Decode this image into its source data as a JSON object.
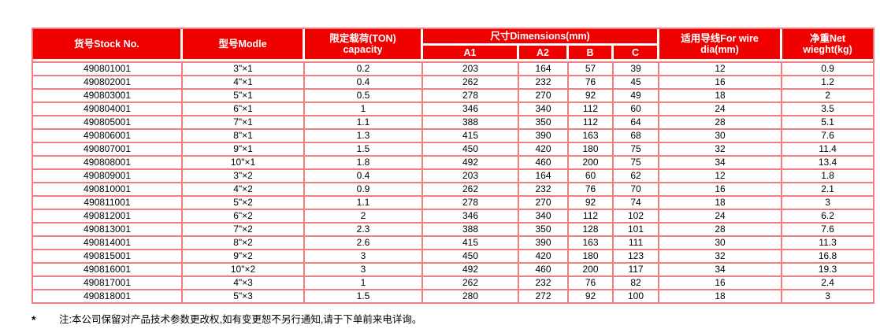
{
  "colors": {
    "header_bg": "#f10000",
    "header_text": "#ffffff",
    "grid_border": "#f37c7c",
    "body_text": "#000000"
  },
  "table": {
    "headers": {
      "stock_no": "货号Stock No.",
      "model": "型号Modle",
      "capacity": "限定载荷(TON)\ncapacity",
      "dimensions_group": "尺寸Dimensions(mm)",
      "dim_cols": [
        "A1",
        "A2",
        "B",
        "C"
      ],
      "wire_dia": "适用导线For wire dia(mm)",
      "net_weight": "净重Net wieght(kg)"
    },
    "rows": [
      [
        "490801001",
        "3\"×1",
        "0.2",
        "203",
        "164",
        "57",
        "39",
        "12",
        "0.9"
      ],
      [
        "490802001",
        "4\"×1",
        "0.4",
        "262",
        "232",
        "76",
        "45",
        "16",
        "1.2"
      ],
      [
        "490803001",
        "5\"×1",
        "0.5",
        "278",
        "270",
        "92",
        "49",
        "18",
        "2"
      ],
      [
        "490804001",
        "6\"×1",
        "1",
        "346",
        "340",
        "112",
        "60",
        "24",
        "3.5"
      ],
      [
        "490805001",
        "7\"×1",
        "1.1",
        "388",
        "350",
        "112",
        "64",
        "28",
        "5.1"
      ],
      [
        "490806001",
        "8\"×1",
        "1.3",
        "415",
        "390",
        "163",
        "68",
        "30",
        "7.6"
      ],
      [
        "490807001",
        "9\"×1",
        "1.5",
        "450",
        "420",
        "180",
        "75",
        "32",
        "11.4"
      ],
      [
        "490808001",
        "10\"×1",
        "1.8",
        "492",
        "460",
        "200",
        "75",
        "34",
        "13.4"
      ],
      [
        "490809001",
        "3\"×2",
        "0.4",
        "203",
        "164",
        "60",
        "62",
        "12",
        "1.8"
      ],
      [
        "490810001",
        "4\"×2",
        "0.9",
        "262",
        "232",
        "76",
        "70",
        "16",
        "2.1"
      ],
      [
        "490811001",
        "5\"×2",
        "1.1",
        "278",
        "270",
        "92",
        "74",
        "18",
        "3"
      ],
      [
        "490812001",
        "6\"×2",
        "2",
        "346",
        "340",
        "112",
        "102",
        "24",
        "6.2"
      ],
      [
        "490813001",
        "7\"×2",
        "2.3",
        "388",
        "350",
        "128",
        "101",
        "28",
        "7.6"
      ],
      [
        "490814001",
        "8\"×2",
        "2.6",
        "415",
        "390",
        "163",
        "111",
        "30",
        "11.3"
      ],
      [
        "490815001",
        "9\"×2",
        "3",
        "450",
        "420",
        "180",
        "123",
        "32",
        "16.8"
      ],
      [
        "490816001",
        "10\"×2",
        "3",
        "492",
        "460",
        "200",
        "117",
        "34",
        "19.3"
      ],
      [
        "490817001",
        "4\"×3",
        "1",
        "262",
        "232",
        "76",
        "82",
        "16",
        "2.4"
      ],
      [
        "490818001",
        "5\"×3",
        "1.5",
        "280",
        "272",
        "92",
        "100",
        "18",
        "3"
      ]
    ]
  },
  "footnote": {
    "marker": "*",
    "text": "注:本公司保留对产品技术参数更改权,如有变更恕不另行通知,请于下单前来电详询。"
  }
}
